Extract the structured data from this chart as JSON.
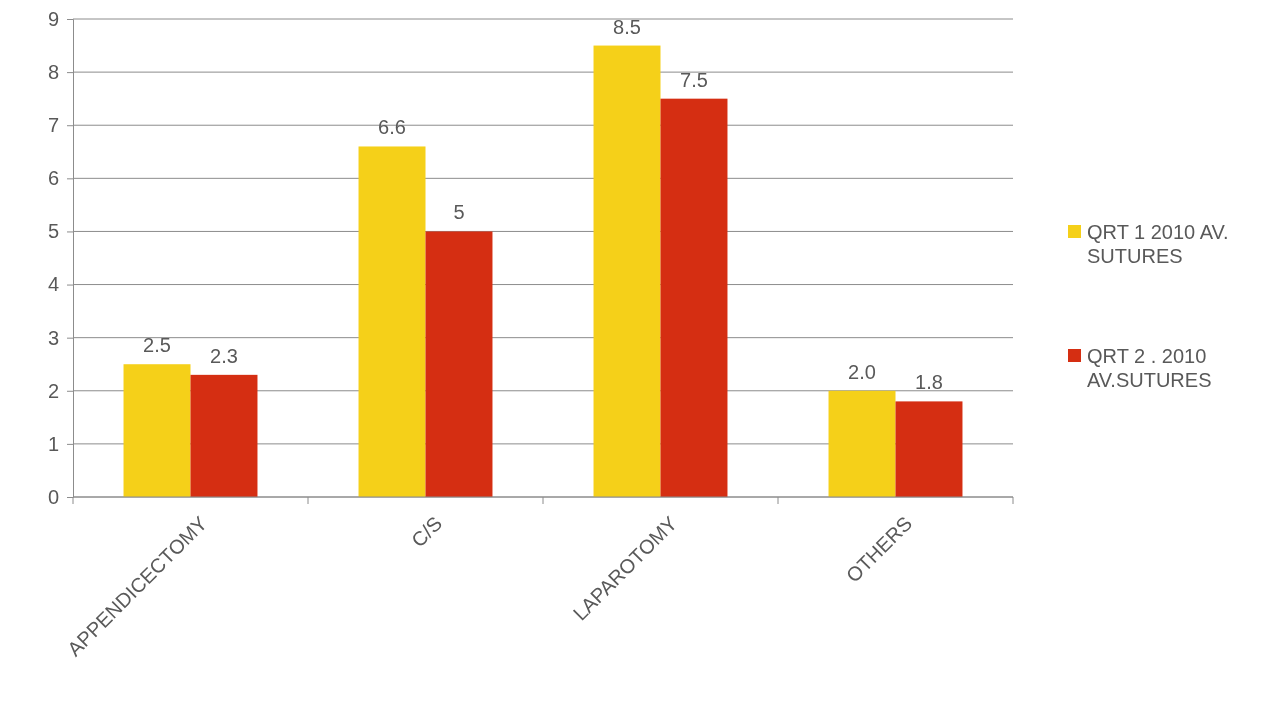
{
  "chart_data": {
    "type": "bar",
    "categories": [
      "APPENDICECTOMY",
      "C/S",
      "LAPAROTOMY",
      "OTHERS"
    ],
    "series": [
      {
        "name": "QRT 1 2010 AV. SUTURES",
        "color": "#f5d019",
        "values": [
          2.5,
          6.6,
          8.5,
          2.0
        ],
        "value_labels": [
          "2.5",
          "6.6",
          "8.5",
          "2.0"
        ]
      },
      {
        "name": "QRT 2 . 2010 AV.SUTURES",
        "color": "#d52e12",
        "values": [
          2.3,
          5,
          7.5,
          1.8
        ],
        "value_labels": [
          "2.3",
          "5",
          "7.5",
          "1.8"
        ]
      }
    ],
    "ylim": [
      0,
      9
    ],
    "yticks": [
      0,
      1,
      2,
      3,
      4,
      5,
      6,
      7,
      8,
      9
    ],
    "grid": "y",
    "legend": "right"
  }
}
